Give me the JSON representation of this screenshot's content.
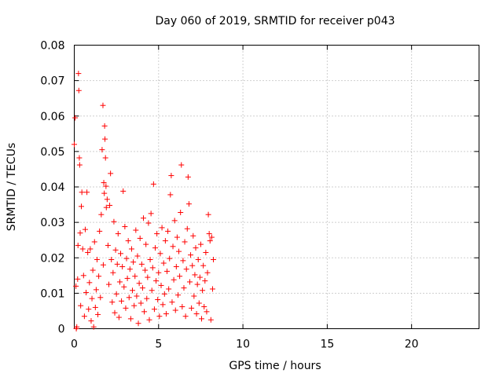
{
  "chart_data": {
    "type": "scatter",
    "title": "Day 060 of 2019, SRMTID for receiver p043",
    "xlabel": "GPS time / hours",
    "ylabel": "SRMTID / TECUs",
    "xlim": [
      0,
      24
    ],
    "ylim": [
      0,
      0.08
    ],
    "x_ticks": [
      0,
      5,
      10,
      15,
      20
    ],
    "x_tick_labels": [
      "0",
      "5",
      "10",
      "15",
      "20"
    ],
    "y_ticks": [
      0,
      0.01,
      0.02,
      0.03,
      0.04,
      0.05,
      0.06,
      0.07,
      0.08
    ],
    "y_tick_labels": [
      "0",
      "0.01",
      "0.02",
      "0.03",
      "0.04",
      "0.05",
      "0.06",
      "0.07",
      "0.08"
    ],
    "grid": true,
    "marker": "+",
    "color": "#ff0000",
    "series": [
      {
        "name": "SRMTID",
        "points": [
          [
            0.0,
            0.052
          ],
          [
            0.05,
            0.0595
          ],
          [
            0.1,
            0.012
          ],
          [
            0.12,
            0.0
          ],
          [
            0.15,
            0.0005
          ],
          [
            0.2,
            0.014
          ],
          [
            0.22,
            0.0235
          ],
          [
            0.25,
            0.072
          ],
          [
            0.27,
            0.0672
          ],
          [
            0.3,
            0.0482
          ],
          [
            0.32,
            0.0462
          ],
          [
            0.35,
            0.027
          ],
          [
            0.38,
            0.0065
          ],
          [
            0.42,
            0.0345
          ],
          [
            0.45,
            0.0385
          ],
          [
            0.5,
            0.0225
          ],
          [
            0.55,
            0.015
          ],
          [
            0.6,
            0.0035
          ],
          [
            0.65,
            0.028
          ],
          [
            0.7,
            0.0102
          ],
          [
            0.75,
            0.0385
          ],
          [
            0.8,
            0.0215
          ],
          [
            0.85,
            0.0055
          ],
          [
            0.9,
            0.013
          ],
          [
            0.95,
            0.0225
          ],
          [
            1.0,
            0.0022
          ],
          [
            1.05,
            0.0085
          ],
          [
            1.1,
            0.0165
          ],
          [
            1.15,
            0.0005
          ],
          [
            1.2,
            0.0245
          ],
          [
            1.25,
            0.006
          ],
          [
            1.3,
            0.011
          ],
          [
            1.35,
            0.0195
          ],
          [
            1.4,
            0.004
          ],
          [
            1.45,
            0.0148
          ],
          [
            1.5,
            0.0275
          ],
          [
            1.55,
            0.0088
          ],
          [
            1.6,
            0.0322
          ],
          [
            1.65,
            0.0505
          ],
          [
            1.7,
            0.063
          ],
          [
            1.72,
            0.018
          ],
          [
            1.75,
            0.0412
          ],
          [
            1.78,
            0.0382
          ],
          [
            1.8,
            0.0572
          ],
          [
            1.82,
            0.0535
          ],
          [
            1.85,
            0.0482
          ],
          [
            1.88,
            0.0402
          ],
          [
            1.9,
            0.0342
          ],
          [
            1.95,
            0.0365
          ],
          [
            2.0,
            0.0235
          ],
          [
            2.05,
            0.0125
          ],
          [
            2.1,
            0.0348
          ],
          [
            2.15,
            0.0438
          ],
          [
            2.2,
            0.0195
          ],
          [
            2.25,
            0.0075
          ],
          [
            2.3,
            0.0158
          ],
          [
            2.35,
            0.0302
          ],
          [
            2.4,
            0.0045
          ],
          [
            2.45,
            0.0222
          ],
          [
            2.5,
            0.0098
          ],
          [
            2.55,
            0.0182
          ],
          [
            2.6,
            0.0268
          ],
          [
            2.65,
            0.0032
          ],
          [
            2.7,
            0.0132
          ],
          [
            2.75,
            0.0212
          ],
          [
            2.8,
            0.0078
          ],
          [
            2.85,
            0.0175
          ],
          [
            2.9,
            0.0388
          ],
          [
            2.95,
            0.0118
          ],
          [
            3.0,
            0.0288
          ],
          [
            3.05,
            0.0058
          ],
          [
            3.1,
            0.0198
          ],
          [
            3.15,
            0.0142
          ],
          [
            3.2,
            0.0248
          ],
          [
            3.25,
            0.0088
          ],
          [
            3.3,
            0.0168
          ],
          [
            3.35,
            0.0028
          ],
          [
            3.4,
            0.0225
          ],
          [
            3.45,
            0.0108
          ],
          [
            3.5,
            0.0188
          ],
          [
            3.55,
            0.0065
          ],
          [
            3.6,
            0.0148
          ],
          [
            3.65,
            0.0278
          ],
          [
            3.7,
            0.0092
          ],
          [
            3.75,
            0.0205
          ],
          [
            3.8,
            0.0015
          ],
          [
            3.85,
            0.0128
          ],
          [
            3.9,
            0.0255
          ],
          [
            3.95,
            0.0072
          ],
          [
            4.0,
            0.0182
          ],
          [
            4.05,
            0.0115
          ],
          [
            4.1,
            0.0312
          ],
          [
            4.15,
            0.0048
          ],
          [
            4.2,
            0.0165
          ],
          [
            4.25,
            0.0238
          ],
          [
            4.3,
            0.0085
          ],
          [
            4.35,
            0.0145
          ],
          [
            4.4,
            0.0298
          ],
          [
            4.45,
            0.0025
          ],
          [
            4.5,
            0.0195
          ],
          [
            4.55,
            0.0325
          ],
          [
            4.6,
            0.0108
          ],
          [
            4.65,
            0.0172
          ],
          [
            4.7,
            0.0408
          ],
          [
            4.75,
            0.0055
          ],
          [
            4.8,
            0.0228
          ],
          [
            4.85,
            0.0135
          ],
          [
            4.9,
            0.0268
          ],
          [
            4.95,
            0.0082
          ],
          [
            5.0,
            0.0158
          ],
          [
            5.05,
            0.0035
          ],
          [
            5.1,
            0.0212
          ],
          [
            5.15,
            0.0122
          ],
          [
            5.2,
            0.0285
          ],
          [
            5.25,
            0.0068
          ],
          [
            5.3,
            0.0185
          ],
          [
            5.35,
            0.0098
          ],
          [
            5.4,
            0.0248
          ],
          [
            5.45,
            0.0042
          ],
          [
            5.5,
            0.0162
          ],
          [
            5.55,
            0.0275
          ],
          [
            5.6,
            0.0112
          ],
          [
            5.65,
            0.0198
          ],
          [
            5.7,
            0.0378
          ],
          [
            5.75,
            0.0432
          ],
          [
            5.8,
            0.0075
          ],
          [
            5.85,
            0.0232
          ],
          [
            5.9,
            0.0138
          ],
          [
            5.95,
            0.0305
          ],
          [
            6.0,
            0.0052
          ],
          [
            6.05,
            0.0175
          ],
          [
            6.1,
            0.0258
          ],
          [
            6.15,
            0.0095
          ],
          [
            6.2,
            0.0218
          ],
          [
            6.25,
            0.0148
          ],
          [
            6.3,
            0.0328
          ],
          [
            6.35,
            0.0462
          ],
          [
            6.4,
            0.0062
          ],
          [
            6.45,
            0.0192
          ],
          [
            6.5,
            0.0115
          ],
          [
            6.55,
            0.0245
          ],
          [
            6.6,
            0.0035
          ],
          [
            6.65,
            0.0168
          ],
          [
            6.7,
            0.0282
          ],
          [
            6.75,
            0.0428
          ],
          [
            6.8,
            0.0352
          ],
          [
            6.85,
            0.0132
          ],
          [
            6.9,
            0.0208
          ],
          [
            6.95,
            0.0058
          ],
          [
            7.0,
            0.0178
          ],
          [
            7.05,
            0.0262
          ],
          [
            7.1,
            0.0092
          ],
          [
            7.15,
            0.0152
          ],
          [
            7.2,
            0.0228
          ],
          [
            7.25,
            0.0042
          ],
          [
            7.3,
            0.0125
          ],
          [
            7.35,
            0.0195
          ],
          [
            7.4,
            0.0072
          ],
          [
            7.45,
            0.0145
          ],
          [
            7.5,
            0.0238
          ],
          [
            7.55,
            0.0028
          ],
          [
            7.6,
            0.0108
          ],
          [
            7.65,
            0.0178
          ],
          [
            7.7,
            0.0062
          ],
          [
            7.75,
            0.0135
          ],
          [
            7.8,
            0.0215
          ],
          [
            7.85,
            0.0048
          ],
          [
            7.9,
            0.0158
          ],
          [
            7.95,
            0.0322
          ],
          [
            8.0,
            0.0268
          ],
          [
            8.05,
            0.0248
          ],
          [
            8.1,
            0.0025
          ],
          [
            8.15,
            0.0258
          ],
          [
            8.2,
            0.0112
          ],
          [
            8.25,
            0.0195
          ]
        ]
      }
    ]
  }
}
